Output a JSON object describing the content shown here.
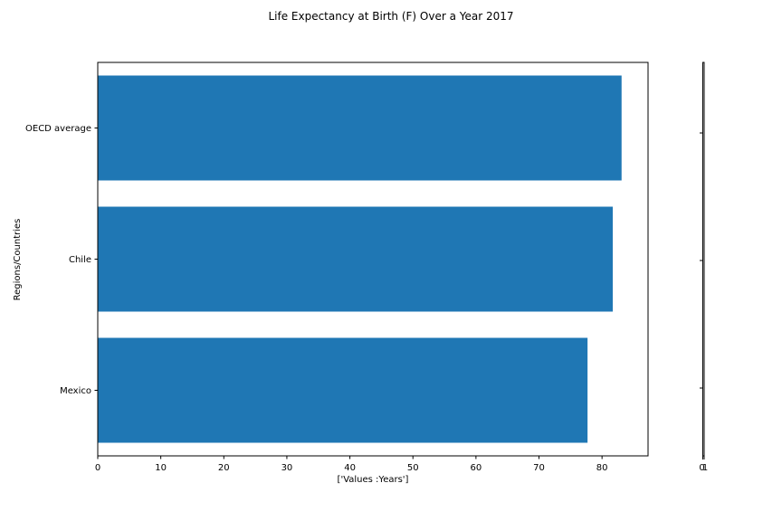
{
  "chart_data": {
    "type": "bar",
    "orientation": "horizontal",
    "title": "Life Expectancy at Birth (F) Over a Year 2017",
    "xlabel": "['Values :Years']",
    "ylabel": "Regions/Countries",
    "categories": [
      "OECD average",
      "Chile",
      "Mexico"
    ],
    "values": [
      83.1,
      81.7,
      77.7
    ],
    "xlim": [
      0,
      87.3
    ],
    "xticks": [
      0,
      10,
      20,
      30,
      40,
      50,
      60,
      70,
      80
    ],
    "bar_color": "#1f77b4",
    "grid": false,
    "legend": "none",
    "side_axis": {
      "tick_labels": [
        "0",
        "1"
      ]
    }
  }
}
